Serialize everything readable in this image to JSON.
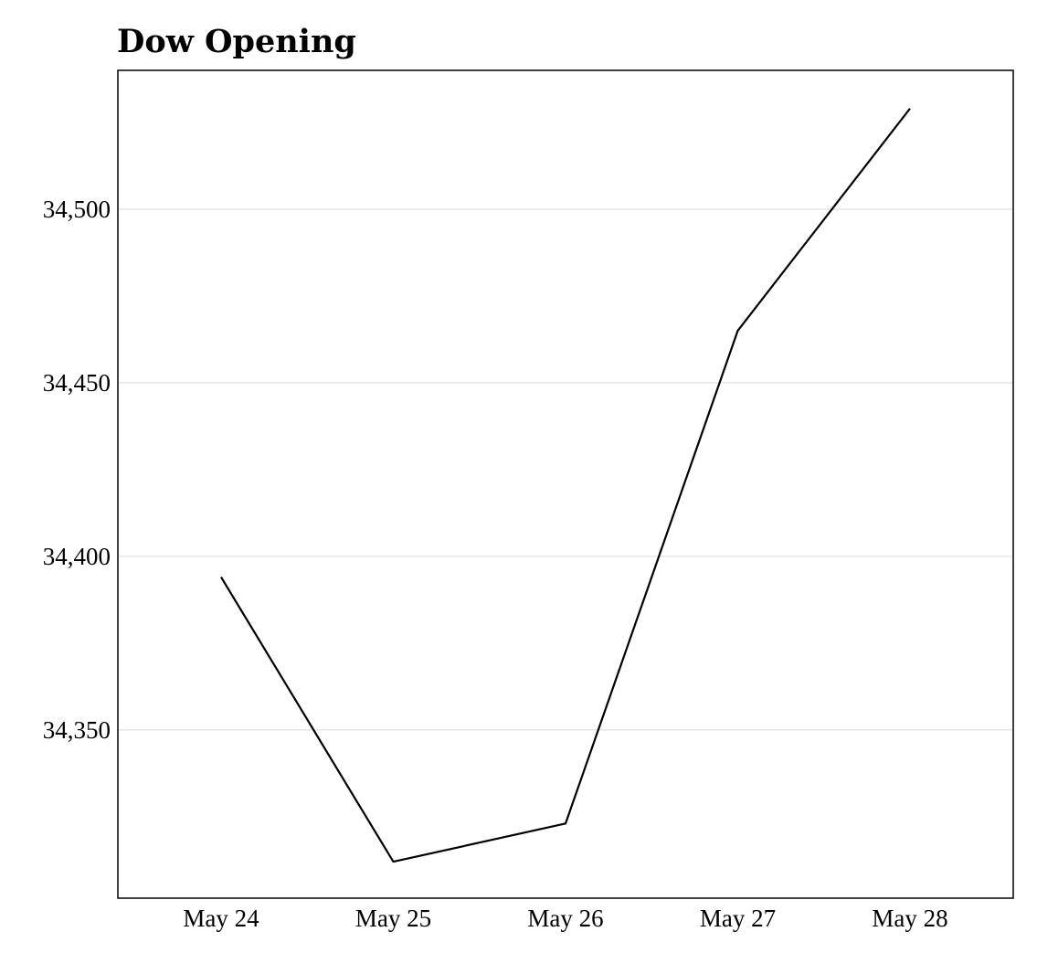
{
  "chart_data": {
    "type": "line",
    "title": "Dow Opening",
    "xlabel": "",
    "ylabel": "",
    "x": [
      "May 24",
      "May 25",
      "May 26",
      "May 27",
      "May 28"
    ],
    "series": [
      {
        "values": [
          34394,
          34312,
          34323,
          34465,
          34529
        ]
      }
    ],
    "yticks": [
      34350,
      34400,
      34450,
      34500
    ],
    "ytick_labels": [
      "34,350",
      "34,400",
      "34,450",
      "34,500"
    ],
    "ylim": [
      34301.5,
      34540
    ],
    "grid": true,
    "legend": "none",
    "colors": {
      "line": "#000000",
      "grid": "#e6e6e6",
      "frame": "#000000"
    }
  }
}
